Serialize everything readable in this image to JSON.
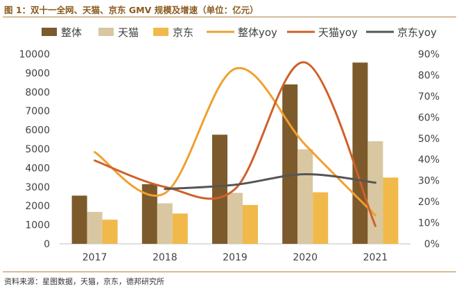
{
  "figure": {
    "title": "图 1：双十一全网、天猫、京东 GMV 规模及增速（单位：亿元）",
    "source": "资料来源：星图数据，天猫，京东，德邦研究所"
  },
  "chart_data": {
    "type": "bar",
    "categories": [
      "2017",
      "2018",
      "2019",
      "2020",
      "2021"
    ],
    "series": [
      {
        "name": "整体",
        "kind": "bar",
        "axis": "left",
        "color": "#7d5a2b",
        "values": [
          2540,
          3143,
          5750,
          8400,
          9550
        ]
      },
      {
        "name": "天猫",
        "kind": "bar",
        "axis": "left",
        "color": "#d8c7a0",
        "values": [
          1682,
          2135,
          2684,
          4982,
          5403
        ]
      },
      {
        "name": "京东",
        "kind": "bar",
        "axis": "left",
        "color": "#f0b94a",
        "values": [
          1271,
          1598,
          2044,
          2715,
          3491
        ]
      },
      {
        "name": "整体yoy",
        "kind": "line",
        "axis": "right",
        "color": "#f0a030",
        "values": [
          43.5,
          24.0,
          83.0,
          47.0,
          13.5
        ]
      },
      {
        "name": "天猫yoy",
        "kind": "line",
        "axis": "right",
        "color": "#d0602a",
        "values": [
          39.5,
          27.0,
          26.0,
          86.0,
          8.5
        ]
      },
      {
        "name": "京东yoy",
        "kind": "line",
        "axis": "right",
        "color": "#555555",
        "values": [
          null,
          26.0,
          28.0,
          33.0,
          29.0
        ]
      }
    ],
    "y_left": {
      "ticks": [
        "0",
        "1000",
        "2000",
        "3000",
        "4000",
        "5000",
        "6000",
        "7000",
        "8000",
        "9000",
        "10000"
      ],
      "ylim": [
        0,
        10000
      ]
    },
    "y_right": {
      "ticks": [
        "0%",
        "10%",
        "20%",
        "30%",
        "40%",
        "50%",
        "60%",
        "70%",
        "80%",
        "90%"
      ],
      "ylim": [
        0,
        90
      ]
    },
    "legend_position": "top",
    "grid": false
  }
}
